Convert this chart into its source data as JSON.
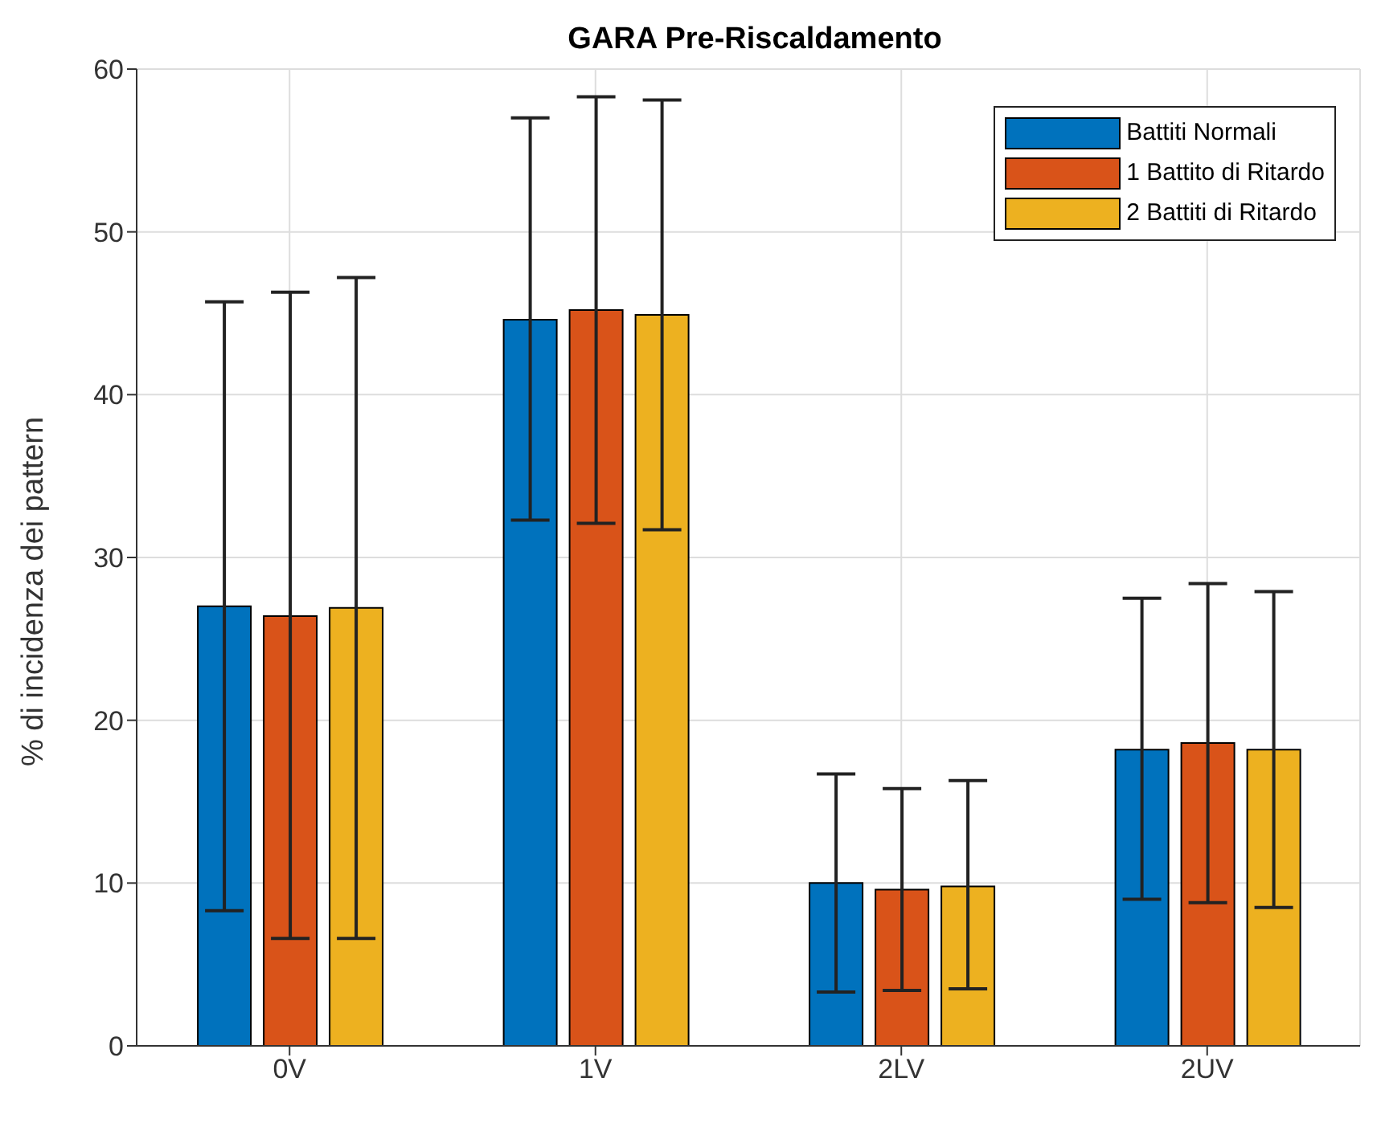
{
  "chart_data": {
    "type": "bar",
    "title": "GARA Pre-Riscaldamento",
    "ylabel": "% di incidenza dei pattern",
    "categories": [
      "0V",
      "1V",
      "2LV",
      "2UV"
    ],
    "series": [
      {
        "name": "Battiti Normali",
        "color": "#0072bd",
        "values": [
          27.0,
          44.6,
          10.0,
          18.2
        ],
        "errors": [
          [
            8.3,
            45.7
          ],
          [
            32.3,
            57.0
          ],
          [
            3.3,
            16.7
          ],
          [
            9.0,
            27.5
          ]
        ]
      },
      {
        "name": "1 Battito di Ritardo",
        "color": "#d95319",
        "values": [
          26.4,
          45.2,
          9.6,
          18.6
        ],
        "errors": [
          [
            6.6,
            46.3
          ],
          [
            32.1,
            58.3
          ],
          [
            3.4,
            15.8
          ],
          [
            8.8,
            28.4
          ]
        ]
      },
      {
        "name": "2 Battiti di Ritardo",
        "color": "#edb120",
        "values": [
          26.9,
          44.9,
          9.8,
          18.2
        ],
        "errors": [
          [
            6.6,
            47.2
          ],
          [
            31.7,
            58.1
          ],
          [
            3.5,
            16.3
          ],
          [
            8.5,
            27.9
          ]
        ]
      }
    ],
    "ylim": [
      0,
      60
    ],
    "yticks": [
      0,
      10,
      20,
      30,
      40,
      50,
      60
    ],
    "grid": true,
    "legend": "top right"
  }
}
